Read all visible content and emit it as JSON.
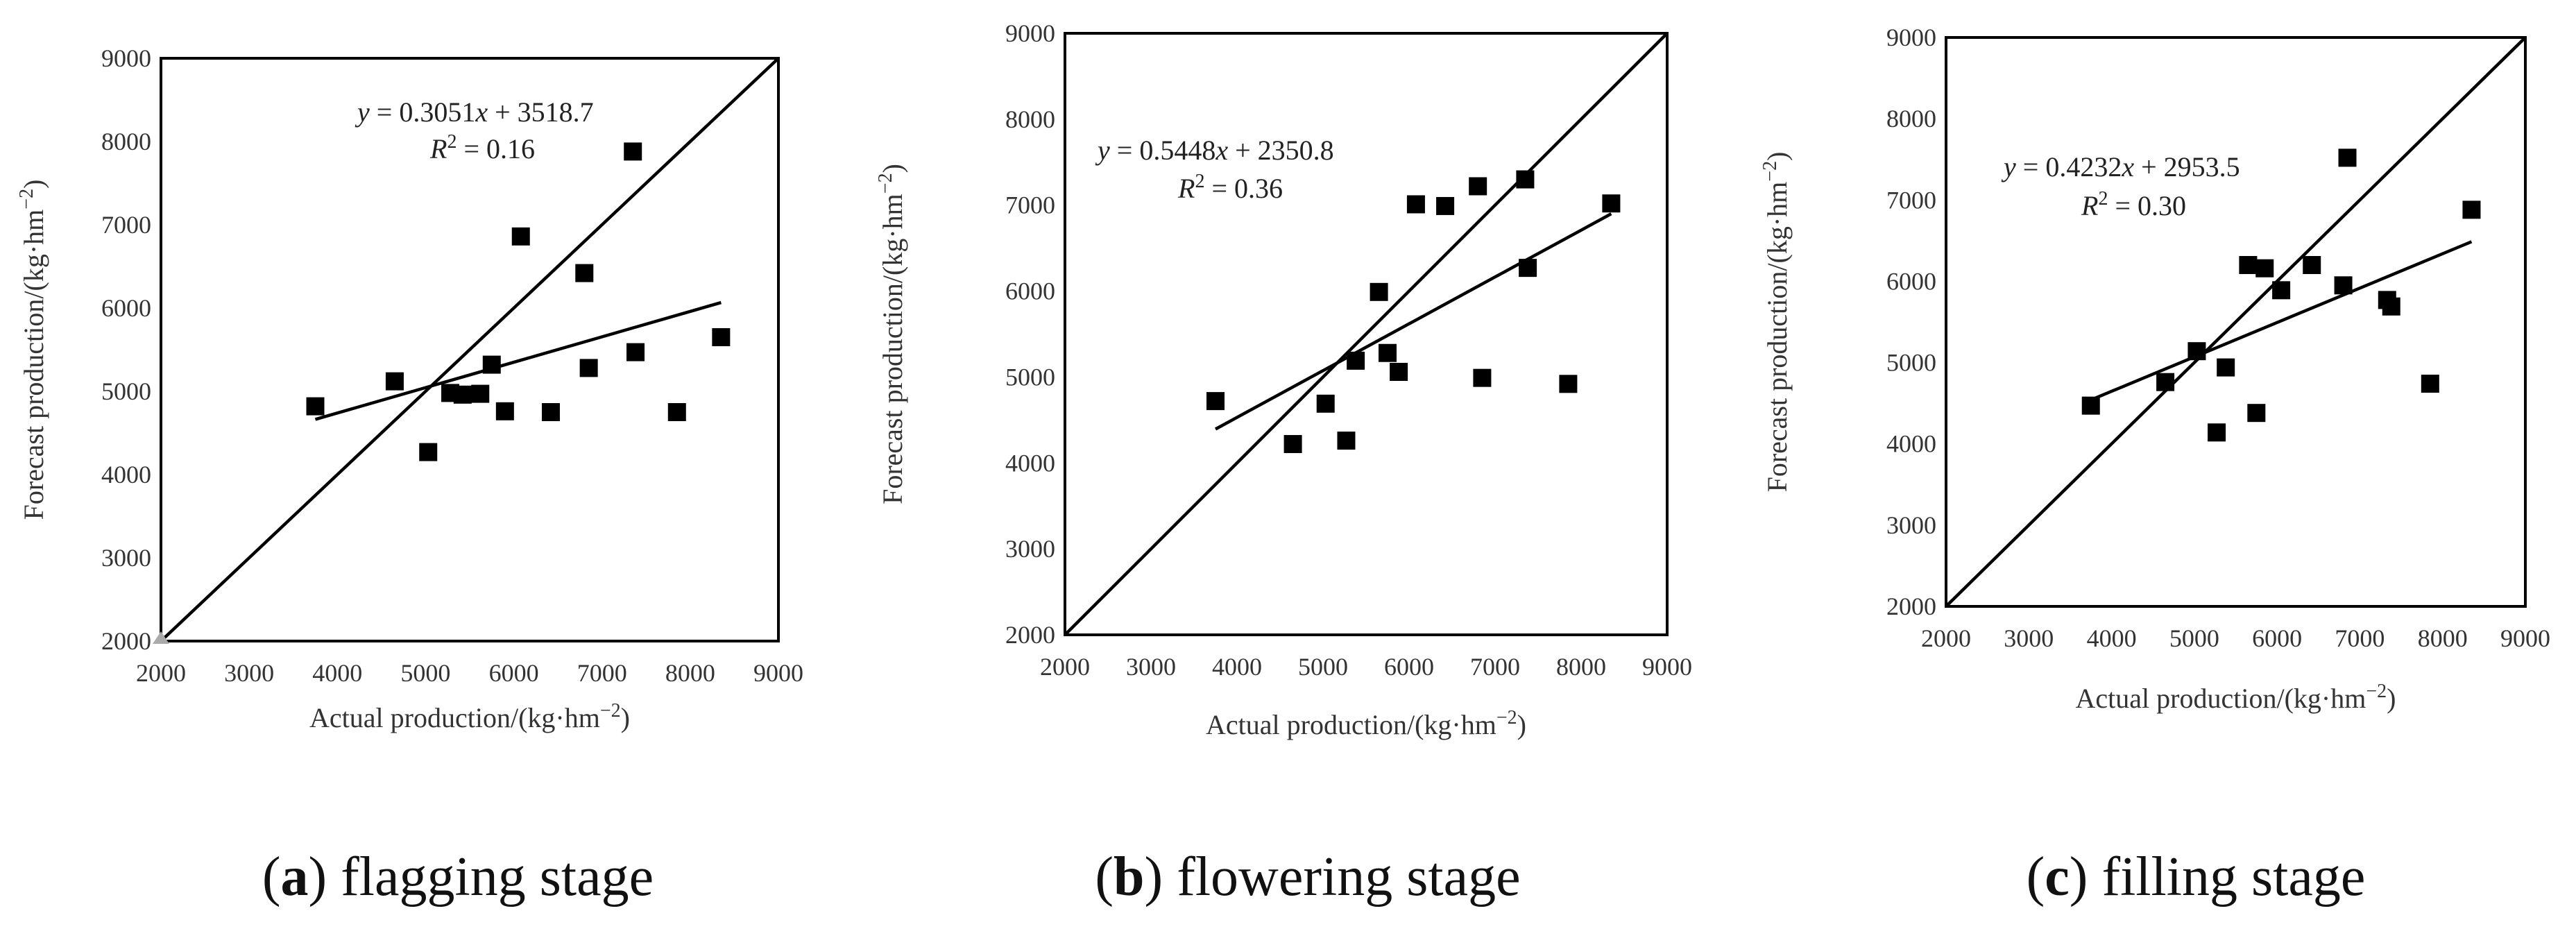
{
  "chart_data": [
    {
      "type": "scatter",
      "x_range": [
        2000,
        9000
      ],
      "y_range": [
        2000,
        9000
      ],
      "xticks": [
        2000,
        3000,
        4000,
        5000,
        6000,
        7000,
        8000,
        9000
      ],
      "yticks": [
        2000,
        3000,
        4000,
        5000,
        6000,
        7000,
        8000,
        9000
      ],
      "xlabel_text": "Actual production/(kg·hm",
      "ylabel_text": "Forecast production/(kg·hm",
      "unit_exponent": "−2",
      "unit_close": ")",
      "equation": {
        "y": "y",
        "eq": " = 0.3051",
        "x": "x",
        "rest": " + 3518.7"
      },
      "r2": {
        "r": "R",
        "sup": "2",
        "rest": " = 0.16"
      },
      "fit": {
        "slope": 0.3051,
        "intercept": 3518.7,
        "x_from": 3750,
        "x_to": 8350
      },
      "reference_line": "1:1",
      "caption": {
        "open": "(",
        "letter": "a",
        "close": ")",
        "text": " flagging stage"
      },
      "points": [
        {
          "x": 3750,
          "y": 4820
        },
        {
          "x": 4650,
          "y": 5120
        },
        {
          "x": 5030,
          "y": 4270
        },
        {
          "x": 5280,
          "y": 4980
        },
        {
          "x": 5420,
          "y": 4960
        },
        {
          "x": 5620,
          "y": 4970
        },
        {
          "x": 5750,
          "y": 5320
        },
        {
          "x": 5900,
          "y": 4760
        },
        {
          "x": 6080,
          "y": 6860
        },
        {
          "x": 6420,
          "y": 4750
        },
        {
          "x": 6800,
          "y": 6420
        },
        {
          "x": 6850,
          "y": 5280
        },
        {
          "x": 7350,
          "y": 7880
        },
        {
          "x": 7380,
          "y": 5470
        },
        {
          "x": 7850,
          "y": 4750
        },
        {
          "x": 8350,
          "y": 5650
        }
      ]
    },
    {
      "type": "scatter",
      "x_range": [
        2000,
        9000
      ],
      "y_range": [
        2000,
        9000
      ],
      "xticks": [
        2000,
        3000,
        4000,
        5000,
        6000,
        7000,
        8000,
        9000
      ],
      "yticks": [
        2000,
        3000,
        4000,
        5000,
        6000,
        7000,
        8000,
        9000
      ],
      "xlabel_text": "Actual production/(kg·hm",
      "ylabel_text": "Forecast production/(kg·hm",
      "unit_exponent": "−2",
      "unit_close": ")",
      "equation": {
        "y": "y",
        "eq": " = 0.5448",
        "x": "x",
        "rest": " + 2350.8"
      },
      "r2": {
        "r": "R",
        "sup": "2",
        "rest": " = 0.36"
      },
      "fit": {
        "slope": 0.5448,
        "intercept": 2350.8,
        "x_from": 3750,
        "x_to": 8350
      },
      "reference_line": "1:1",
      "caption": {
        "open": "(",
        "letter": "b",
        "close": ")",
        "text": " flowering stage"
      },
      "points": [
        {
          "x": 3750,
          "y": 4720
        },
        {
          "x": 4650,
          "y": 4220
        },
        {
          "x": 5030,
          "y": 4690
        },
        {
          "x": 5270,
          "y": 4260
        },
        {
          "x": 5380,
          "y": 5190
        },
        {
          "x": 5650,
          "y": 5990
        },
        {
          "x": 5750,
          "y": 5280
        },
        {
          "x": 5880,
          "y": 5060
        },
        {
          "x": 6080,
          "y": 7010
        },
        {
          "x": 6420,
          "y": 6990
        },
        {
          "x": 6800,
          "y": 7220
        },
        {
          "x": 6850,
          "y": 4990
        },
        {
          "x": 7350,
          "y": 7300
        },
        {
          "x": 7380,
          "y": 6270
        },
        {
          "x": 7850,
          "y": 4920
        },
        {
          "x": 8350,
          "y": 7020
        }
      ]
    },
    {
      "type": "scatter",
      "x_range": [
        2000,
        9000
      ],
      "y_range": [
        2000,
        9000
      ],
      "xticks": [
        2000,
        3000,
        4000,
        5000,
        6000,
        7000,
        8000,
        9000
      ],
      "yticks": [
        2000,
        3000,
        4000,
        5000,
        6000,
        7000,
        8000,
        9000
      ],
      "xlabel_text": "Actual production/(kg·hm",
      "ylabel_text": "Forecast production/(kg·hm",
      "unit_exponent": "−2",
      "unit_close": ")",
      "equation": {
        "y": "y",
        "eq": " = 0.4232",
        "x": "x",
        "rest": " + 2953.5"
      },
      "r2": {
        "r": "R",
        "sup": "2",
        "rest": " = 0.30"
      },
      "fit": {
        "slope": 0.4232,
        "intercept": 2953.5,
        "x_from": 3750,
        "x_to": 8350
      },
      "reference_line": "1:1",
      "caption": {
        "open": "(",
        "letter": "c",
        "close": ")",
        "text": " filling stage"
      },
      "points": [
        {
          "x": 3750,
          "y": 4470
        },
        {
          "x": 4650,
          "y": 4760
        },
        {
          "x": 5030,
          "y": 5140
        },
        {
          "x": 5270,
          "y": 4140
        },
        {
          "x": 5380,
          "y": 4940
        },
        {
          "x": 5650,
          "y": 6200
        },
        {
          "x": 5750,
          "y": 4380
        },
        {
          "x": 5850,
          "y": 6160
        },
        {
          "x": 6050,
          "y": 5890
        },
        {
          "x": 6420,
          "y": 6200
        },
        {
          "x": 6800,
          "y": 5950
        },
        {
          "x": 6850,
          "y": 7520
        },
        {
          "x": 7330,
          "y": 5770
        },
        {
          "x": 7380,
          "y": 5690
        },
        {
          "x": 7850,
          "y": 4740
        },
        {
          "x": 8350,
          "y": 6880
        }
      ]
    }
  ]
}
